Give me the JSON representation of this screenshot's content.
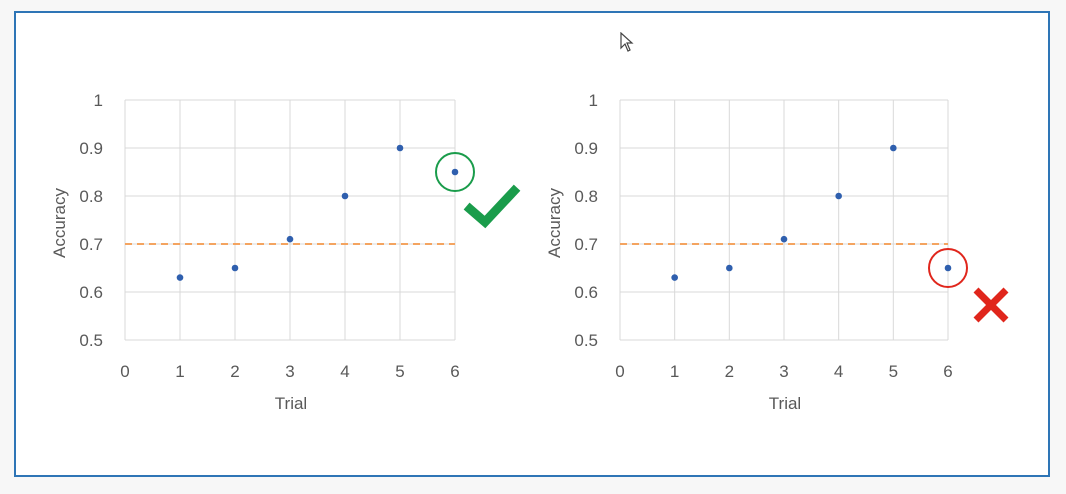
{
  "chart_data": [
    {
      "type": "scatter",
      "xlabel": "Trial",
      "ylabel": "Accuracy",
      "x_ticks": [
        "0",
        "1",
        "2",
        "3",
        "4",
        "5",
        "6"
      ],
      "y_ticks": [
        "0.5",
        "0.6",
        "0.7",
        "0.8",
        "0.9",
        "1"
      ],
      "xlim": [
        0,
        6
      ],
      "ylim": [
        0.5,
        1
      ],
      "grid": true,
      "x": [
        1,
        2,
        3,
        4,
        5,
        6
      ],
      "y": [
        0.63,
        0.65,
        0.71,
        0.8,
        0.9,
        0.85
      ],
      "threshold": 0.7,
      "highlight_index": 5,
      "highlight_marker": "check",
      "highlight_color": "#1a9c4b"
    },
    {
      "type": "scatter",
      "xlabel": "Trial",
      "ylabel": "Accuracy",
      "x_ticks": [
        "0",
        "1",
        "2",
        "3",
        "4",
        "5",
        "6"
      ],
      "y_ticks": [
        "0.5",
        "0.6",
        "0.7",
        "0.8",
        "0.9",
        "1"
      ],
      "xlim": [
        0,
        6
      ],
      "ylim": [
        0.5,
        1
      ],
      "grid": true,
      "x": [
        1,
        2,
        3,
        4,
        5,
        6
      ],
      "y": [
        0.63,
        0.65,
        0.71,
        0.8,
        0.9,
        0.65
      ],
      "threshold": 0.7,
      "highlight_index": 5,
      "highlight_marker": "cross",
      "highlight_color": "#e0261c"
    }
  ],
  "colors": {
    "point": "#2f5fae",
    "threshold_line": "#f4a460",
    "grid": "#d9d9d9",
    "frame": "#2e75b6"
  },
  "icons": {
    "cursor": "mouse-pointer-icon",
    "pass": "checkmark-icon",
    "fail": "cross-icon"
  }
}
